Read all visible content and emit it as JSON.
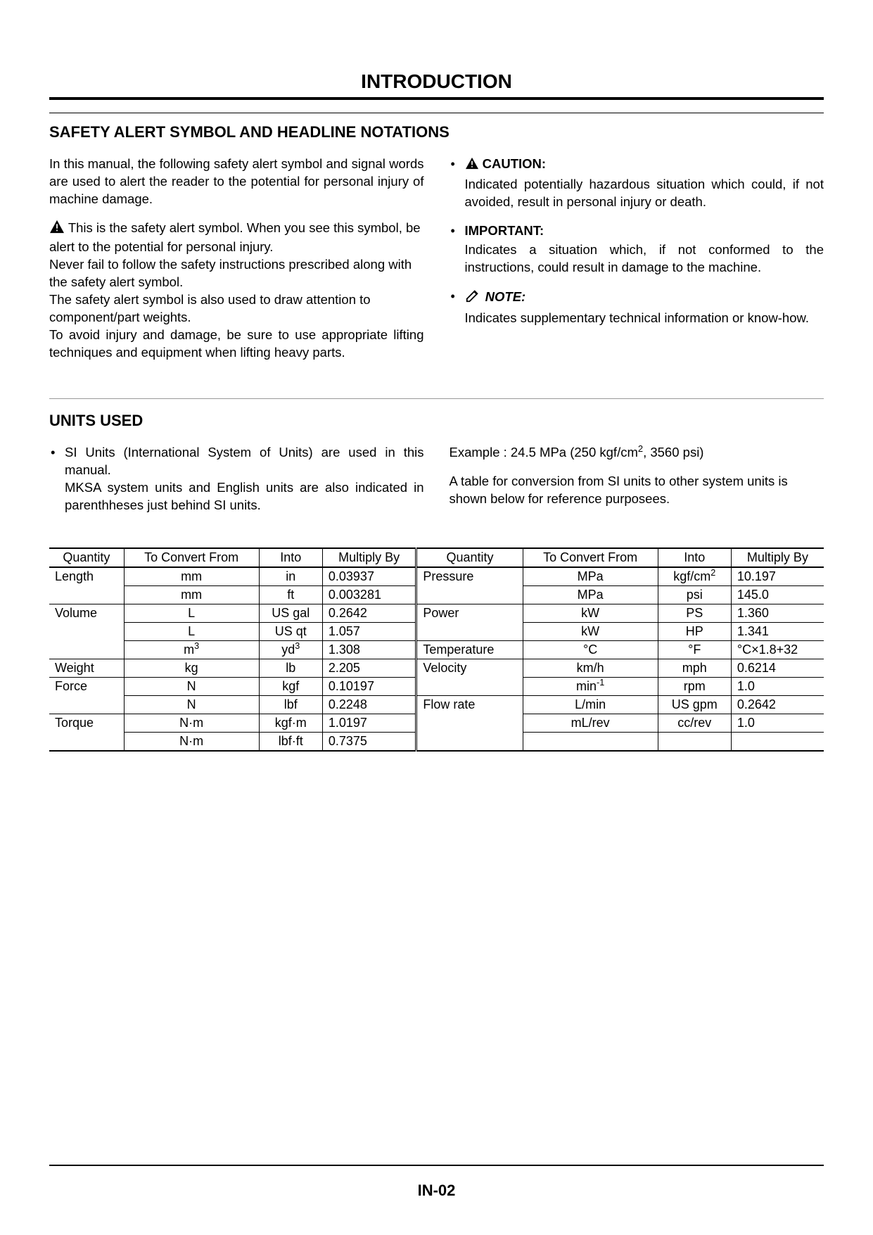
{
  "page": {
    "title": "INTRODUCTION",
    "footer_page": "IN-02"
  },
  "safety": {
    "heading": "SAFETY ALERT SYMBOL AND HEADLINE NOTATIONS",
    "intro": "In this manual, the following safety alert symbol and signal words are used to alert the reader to the potential for personal injury of machine damage.",
    "alert_para_1": "This is the safety alert symbol. When you see this symbol, be alert to the potential for personal injury.",
    "alert_para_2": "Never fail to follow the safety instructions prescribed along with the safety alert symbol.",
    "alert_para_3": "The safety alert symbol is also used to draw attention to component/part weights.",
    "alert_para_4": "To avoid injury and damage, be sure to use appropriate lifting techniques and equipment when lifting heavy parts.",
    "notations": {
      "caution_label": "CAUTION:",
      "caution_body": "Indicated potentially hazardous situation which could, if not avoided, result in personal injury or death.",
      "important_label": "IMPORTANT:",
      "important_body": "Indicates a situation which, if not conformed to the instructions, could result in damage to the machine.",
      "note_label": "NOTE:",
      "note_body": "Indicates supplementary technical information or know-how."
    }
  },
  "units": {
    "heading": "UNITS USED",
    "left_1": "SI Units (International System of Units) are used in this manual.",
    "left_2": "MKSA system units and English units are also indicated in parenthheses just behind SI units.",
    "right_1_prefix": "Example : 24.5 MPa (250 kgf/cm",
    "right_1_suffix": ", 3560 psi)",
    "right_2": "A table for conversion from SI units to other system units is shown below for reference purposees."
  },
  "table": {
    "headers": {
      "quantity": "Quantity",
      "convert_from": "To Convert From",
      "into": "Into",
      "multiply_by": "Multiply By"
    },
    "left_rows": [
      {
        "q": "Length",
        "from": "mm",
        "into": "in",
        "mul": "0.03937"
      },
      {
        "q": "",
        "from": "mm",
        "into": "ft",
        "mul": "0.003281"
      },
      {
        "q": "Volume",
        "from": "L",
        "into": "US gal",
        "mul": "0.2642"
      },
      {
        "q": "",
        "from": "L",
        "into": "US qt",
        "mul": "1.057"
      },
      {
        "q": "",
        "from": "m³",
        "into": "yd³",
        "mul": "1.308",
        "from_sup": "3",
        "from_base": "m",
        "into_sup": "3",
        "into_base": "yd"
      },
      {
        "q": "Weight",
        "from": "kg",
        "into": "lb",
        "mul": "2.205"
      },
      {
        "q": "Force",
        "from": "N",
        "into": "kgf",
        "mul": "0.10197"
      },
      {
        "q": "",
        "from": "N",
        "into": "lbf",
        "mul": "0.2248"
      },
      {
        "q": "Torque",
        "from": "N·m",
        "into": "kgf·m",
        "mul": "1.0197"
      },
      {
        "q": "",
        "from": "N·m",
        "into": "lbf·ft",
        "mul": "0.7375"
      }
    ],
    "right_rows": [
      {
        "q": "Pressure",
        "from": "MPa",
        "into": "kgf/cm²",
        "mul": "10.197",
        "into_sup": "2",
        "into_base": "kgf/cm"
      },
      {
        "q": "",
        "from": "MPa",
        "into": "psi",
        "mul": "145.0"
      },
      {
        "q": "Power",
        "from": "kW",
        "into": "PS",
        "mul": "1.360"
      },
      {
        "q": "",
        "from": "kW",
        "into": "HP",
        "mul": "1.341"
      },
      {
        "q": "Temperature",
        "from": "°C",
        "into": "°F",
        "mul": "°C×1.8+32"
      },
      {
        "q": "Velocity",
        "from": "km/h",
        "into": "mph",
        "mul": "0.6214"
      },
      {
        "q": "",
        "from": "min⁻¹",
        "into": "rpm",
        "mul": "1.0",
        "from_sup": "-1",
        "from_base": "min"
      },
      {
        "q": "Flow rate",
        "from": "L/min",
        "into": "US gpm",
        "mul": "0.2642"
      },
      {
        "q": "",
        "from": "mL/rev",
        "into": "cc/rev",
        "mul": "1.0"
      },
      {
        "q": "",
        "from": "",
        "into": "",
        "mul": ""
      }
    ]
  },
  "colors": {
    "text": "#000000",
    "background": "#ffffff",
    "divider": "#999999"
  }
}
